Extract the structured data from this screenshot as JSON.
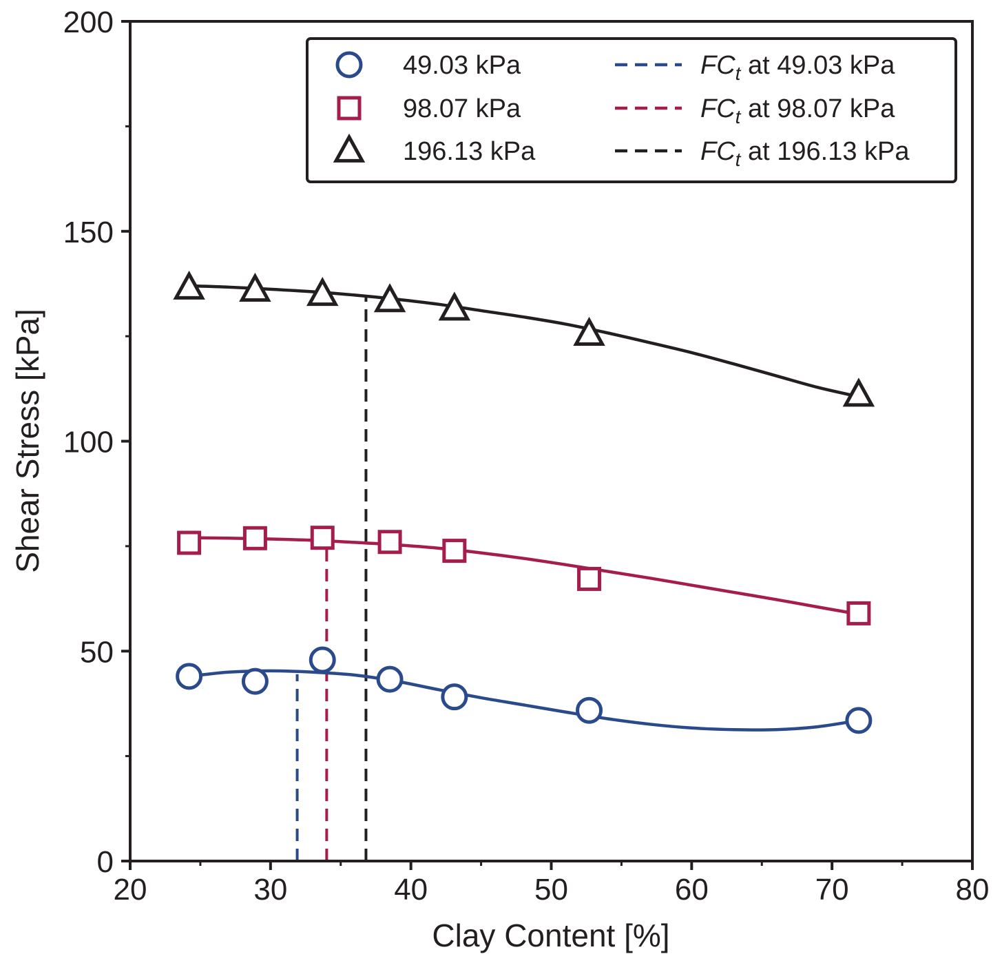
{
  "chart_data": {
    "type": "scatter",
    "title": "",
    "xlabel": "Clay Content [%]",
    "ylabel": "Shear Stress [kPa]",
    "xlim": [
      20,
      80
    ],
    "ylim": [
      0,
      200
    ],
    "xticks": [
      20,
      30,
      40,
      50,
      60,
      70,
      80
    ],
    "yticks": [
      0,
      50,
      100,
      150,
      200
    ],
    "xticks_minor": [
      25,
      35,
      45,
      55,
      65,
      75
    ],
    "yticks_minor": [
      25,
      75,
      125,
      175
    ],
    "xtick_labels": [
      "20",
      "30",
      "40",
      "50",
      "60",
      "70",
      "80"
    ],
    "ytick_labels": [
      "0",
      "50",
      "100",
      "150",
      "200"
    ],
    "grid": false,
    "legend_position": "top-right",
    "series": [
      {
        "name": "49.03 kPa",
        "marker": "circle",
        "color": "#2b4a8b",
        "x": [
          24.2,
          28.9,
          33.7,
          38.5,
          43.1,
          52.7,
          71.9
        ],
        "y": [
          44.0,
          42.8,
          47.9,
          43.3,
          39.1,
          35.9,
          33.5
        ]
      },
      {
        "name": "98.07 kPa",
        "marker": "square",
        "color": "#a51d4d",
        "x": [
          24.2,
          28.9,
          33.7,
          38.5,
          43.1,
          52.7,
          71.9
        ],
        "y": [
          75.8,
          76.9,
          77.0,
          76.0,
          73.9,
          67.2,
          59.0
        ]
      },
      {
        "name": "196.13 kPa",
        "marker": "triangle",
        "color": "#231f20",
        "x": [
          24.2,
          28.9,
          33.7,
          38.5,
          43.1,
          52.7,
          71.9
        ],
        "y": [
          136.5,
          136.0,
          135.0,
          133.5,
          131.5,
          125.5,
          111.0
        ]
      }
    ],
    "fitted_curves": [
      {
        "series": "49.03 kPa",
        "color": "#2b4a8b",
        "x": [
          24.2,
          27,
          30,
          33,
          36,
          39,
          42,
          45,
          48,
          51,
          54,
          57,
          60,
          63,
          66,
          69,
          71.9
        ],
        "y": [
          44.0,
          45.0,
          45.3,
          45.0,
          44.3,
          42.8,
          40.8,
          38.9,
          37.2,
          35.5,
          33.9,
          32.6,
          31.7,
          31.3,
          31.3,
          32.0,
          33.5
        ]
      },
      {
        "series": "98.07 kPa",
        "color": "#a51d4d",
        "x": [
          24.2,
          27,
          30,
          33,
          36,
          39,
          42,
          45,
          48,
          51,
          54,
          57,
          60,
          63,
          66,
          69,
          71.9
        ],
        "y": [
          77.0,
          76.9,
          76.7,
          76.4,
          75.9,
          75.3,
          74.5,
          73.4,
          72.1,
          70.6,
          69.0,
          67.4,
          65.7,
          64.0,
          62.3,
          60.5,
          58.8
        ]
      },
      {
        "series": "196.13 kPa",
        "color": "#231f20",
        "x": [
          24.2,
          27,
          30,
          33,
          36,
          39,
          42,
          45,
          48,
          51,
          54,
          57,
          60,
          63,
          66,
          69,
          71.9
        ],
        "y": [
          137.0,
          136.7,
          136.2,
          135.6,
          134.8,
          133.8,
          132.6,
          131.1,
          129.6,
          127.9,
          125.8,
          123.5,
          121.1,
          118.4,
          115.6,
          112.8,
          110.6
        ]
      }
    ],
    "threshold_lines": [
      {
        "name": "FCt at 49.03 kPa",
        "color": "#2b4a8b",
        "x": 31.9,
        "y_top": 44.5
      },
      {
        "name": "FCt at 98.07 kPa",
        "color": "#a51d4d",
        "x": 34.0,
        "y_top": 76.4
      },
      {
        "name": "FCt at 196.13 kPa",
        "color": "#231f20",
        "x": 36.8,
        "y_top": 134.6
      }
    ]
  },
  "legend": {
    "markers": [
      {
        "label": "49.03 kPa",
        "marker": "circle",
        "color": "#2b4a8b"
      },
      {
        "label": "98.07 kPa",
        "marker": "square",
        "color": "#a51d4d"
      },
      {
        "label": "196.13 kPa",
        "marker": "triangle",
        "color": "#231f20"
      }
    ],
    "lines": [
      {
        "prefix": "FC",
        "subscript": "t",
        "suffix": " at 49.03 kPa",
        "color": "#2b4a8b"
      },
      {
        "prefix": "FC",
        "subscript": "t",
        "suffix": " at 98.07 kPa",
        "color": "#a51d4d"
      },
      {
        "prefix": "FC",
        "subscript": "t",
        "suffix": " at 196.13 kPa",
        "color": "#231f20"
      }
    ]
  }
}
